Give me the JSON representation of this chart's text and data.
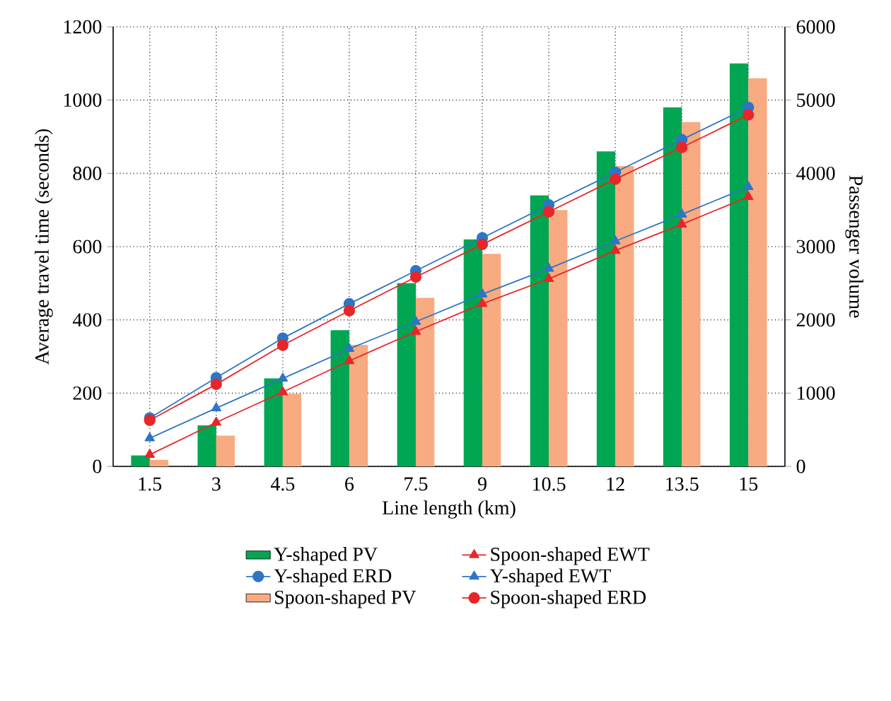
{
  "chart_data": {
    "type": "bar",
    "xlabel": "Line length (km)",
    "ylabel": "Average travel time (seconds)",
    "y2label": "Passenger volume",
    "categories": [
      "1.5",
      "3",
      "4.5",
      "6",
      "7.5",
      "9",
      "10.5",
      "12",
      "13.5",
      "15"
    ],
    "ylim": [
      0,
      1200
    ],
    "yticks": [
      0,
      200,
      400,
      600,
      800,
      1000,
      1200
    ],
    "y2lim": [
      0,
      6000
    ],
    "y2ticks": [
      0,
      1000,
      2000,
      3000,
      4000,
      5000,
      6000
    ],
    "grid": true,
    "legend": "bottom",
    "line_style": "solid",
    "series": [
      {
        "name": "Y-shaped PV",
        "axis": "y2",
        "color": "#00a651",
        "values": [
          150,
          560,
          1200,
          1860,
          2500,
          3100,
          3700,
          4300,
          4900,
          5500
        ]
      },
      {
        "name": "Y-shaped ERD",
        "type": "line",
        "marker": "circle",
        "color": "#2e75c6",
        "values": [
          132,
          242,
          350,
          444,
          534,
          624,
          714,
          803,
          892,
          980
        ]
      },
      {
        "name": "Spoon-shaped PV",
        "axis": "y2",
        "color": "#f8ab80",
        "values": [
          90,
          420,
          990,
          1660,
          2300,
          2900,
          3500,
          4100,
          4700,
          5300
        ]
      },
      {
        "name": "Spoon-shaped EWT",
        "type": "line",
        "marker": "triangle",
        "color": "#e8262a",
        "values": [
          32,
          120,
          203,
          288,
          368,
          444,
          512,
          589,
          661,
          736
        ]
      },
      {
        "name": "Y-shaped EWT",
        "type": "line",
        "marker": "triangle",
        "color": "#2e75c6",
        "values": [
          77,
          159,
          240,
          321,
          395,
          470,
          540,
          615,
          688,
          763
        ]
      },
      {
        "name": "Spoon-shaped ERD",
        "type": "line",
        "marker": "circle",
        "color": "#e8262a",
        "values": [
          126,
          224,
          331,
          425,
          517,
          606,
          695,
          784,
          871,
          960
        ]
      }
    ]
  }
}
